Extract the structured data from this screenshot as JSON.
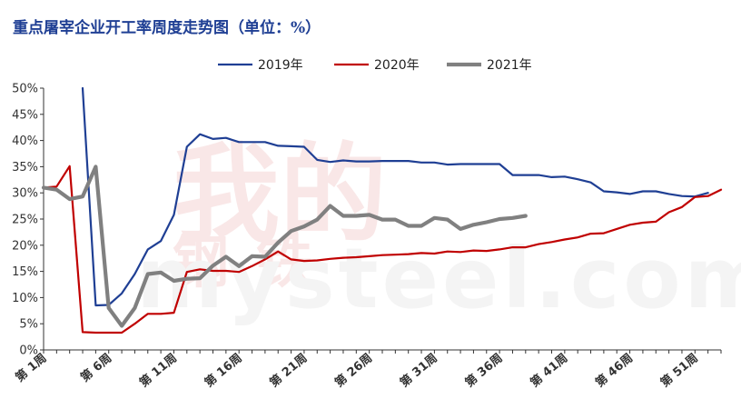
{
  "chart_data": {
    "type": "line",
    "title": "重点屠宰企业开工率周度走势图（单位：%）",
    "xlabel": "",
    "ylabel": "",
    "ylim": [
      0,
      50
    ],
    "xlim": [
      1,
      53
    ],
    "yticks": [
      "0%",
      "5%",
      "10%",
      "15%",
      "20%",
      "25%",
      "30%",
      "35%",
      "40%",
      "45%",
      "50%"
    ],
    "yticks_values": [
      0,
      5,
      10,
      15,
      20,
      25,
      30,
      35,
      40,
      45,
      50
    ],
    "xticks": [
      "第 1周",
      "第 6周",
      "第 11周",
      "第 16周",
      "第 21周",
      "第 26周",
      "第 31周",
      "第 36周",
      "第 41周",
      "第 46周",
      "第 51周"
    ],
    "xticks_values": [
      1,
      6,
      11,
      16,
      21,
      26,
      31,
      36,
      41,
      46,
      51
    ],
    "legend_position": "top-center",
    "grid": false,
    "watermark": "我的钢铁 mysteel.com",
    "series": [
      {
        "name": "2019年",
        "color": "#1f3f94",
        "x": [
          4,
          5,
          6,
          7,
          8,
          9,
          10,
          11,
          12,
          13,
          14,
          15,
          16,
          17,
          18,
          19,
          20,
          21,
          22,
          23,
          24,
          25,
          26,
          27,
          28,
          29,
          30,
          31,
          32,
          33,
          34,
          35,
          36,
          37,
          38,
          39,
          40,
          41,
          42,
          43,
          44,
          45,
          46,
          47,
          48,
          49,
          50,
          51,
          52
        ],
        "values": [
          50,
          8.5,
          8.6,
          10.8,
          14.5,
          19.2,
          20.8,
          25.8,
          38.8,
          41.2,
          40.3,
          40.5,
          39.7,
          39.7,
          39.7,
          39.0,
          38.9,
          38.8,
          36.3,
          35.9,
          36.2,
          36.0,
          36.0,
          36.1,
          36.1,
          36.1,
          35.8,
          35.8,
          35.4,
          35.5,
          35.5,
          35.5,
          35.5,
          33.4,
          33.4,
          33.4,
          33.0,
          33.1,
          32.6,
          32.0,
          30.3,
          30.1,
          29.8,
          30.3,
          30.3,
          29.8,
          29.4,
          29.3,
          30.0
        ]
      },
      {
        "name": "2020年",
        "color": "#c00000",
        "x": [
          1,
          2,
          3,
          4,
          5,
          6,
          7,
          8,
          9,
          10,
          11,
          12,
          13,
          14,
          15,
          16,
          17,
          18,
          19,
          20,
          21,
          22,
          23,
          24,
          25,
          26,
          27,
          28,
          29,
          30,
          31,
          32,
          33,
          34,
          35,
          36,
          37,
          38,
          39,
          40,
          41,
          42,
          43,
          44,
          45,
          46,
          47,
          48,
          49,
          50,
          51,
          52,
          53
        ],
        "values": [
          31.0,
          31.2,
          35.1,
          3.4,
          3.3,
          3.3,
          3.3,
          5.0,
          6.9,
          6.9,
          7.1,
          14.9,
          15.4,
          15.1,
          15.1,
          14.9,
          16.0,
          17.3,
          18.8,
          17.3,
          17.0,
          17.1,
          17.4,
          17.6,
          17.7,
          17.9,
          18.1,
          18.2,
          18.3,
          18.5,
          18.4,
          18.8,
          18.7,
          19.0,
          18.9,
          19.2,
          19.6,
          19.6,
          20.2,
          20.6,
          21.1,
          21.5,
          22.2,
          22.3,
          23.1,
          23.9,
          24.3,
          24.5,
          26.3,
          27.3,
          29.2,
          29.4,
          30.6
        ]
      },
      {
        "name": "2021年",
        "color": "#808080",
        "x": [
          1,
          2,
          3,
          4,
          5,
          6,
          7,
          8,
          9,
          10,
          11,
          12,
          13,
          14,
          15,
          16,
          17,
          18,
          19,
          20,
          21,
          22,
          23,
          24,
          25,
          26,
          27,
          28,
          29,
          30,
          31,
          32,
          33,
          34,
          35,
          36,
          37,
          38
        ],
        "values": [
          31.0,
          30.6,
          28.8,
          29.3,
          35.0,
          8.0,
          4.6,
          8.0,
          14.5,
          14.8,
          13.2,
          13.6,
          13.7,
          16.1,
          17.8,
          16.0,
          17.9,
          17.8,
          20.5,
          22.7,
          23.6,
          24.9,
          27.5,
          25.6,
          25.6,
          25.8,
          24.9,
          24.9,
          23.7,
          23.7,
          25.2,
          24.9,
          23.1,
          23.9,
          24.4,
          25.0,
          25.2,
          25.6
        ]
      }
    ]
  }
}
